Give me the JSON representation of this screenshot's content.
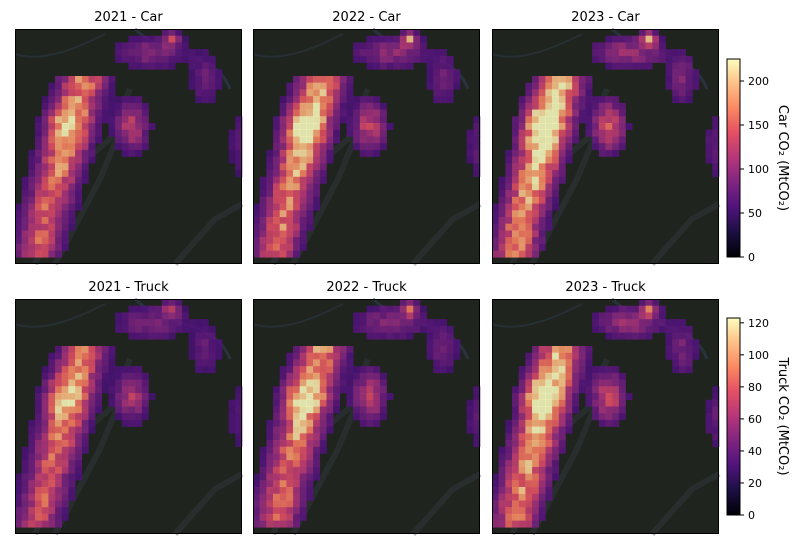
{
  "chart_data": [
    {
      "type": "heatmap",
      "title": "2021 - Car",
      "row": "car",
      "year": "2021",
      "colorbar_group": "car"
    },
    {
      "type": "heatmap",
      "title": "2022 - Car",
      "row": "car",
      "year": "2022",
      "colorbar_group": "car"
    },
    {
      "type": "heatmap",
      "title": "2023 - Car",
      "row": "car",
      "year": "2023",
      "colorbar_group": "car"
    },
    {
      "type": "heatmap",
      "title": "2021 - Truck",
      "row": "truck",
      "year": "2021",
      "colorbar_group": "truck"
    },
    {
      "type": "heatmap",
      "title": "2022 - Truck",
      "row": "truck",
      "year": "2022",
      "colorbar_group": "truck"
    },
    {
      "type": "heatmap",
      "title": "2023 - Truck",
      "row": "truck",
      "year": "2023",
      "colorbar_group": "truck"
    }
  ],
  "colorbars": {
    "car": {
      "label": "Car CO₂ (MtCO₂)",
      "ticks": [
        0,
        50,
        100,
        150,
        200
      ],
      "vmin": 0,
      "vmax": 225
    },
    "truck": {
      "label": "Truck CO₂ (MtCO₂)",
      "ticks": [
        0,
        20,
        40,
        60,
        80,
        100,
        120
      ],
      "vmax": 123,
      "vmin": 0
    }
  },
  "colormap": "magma",
  "basemap": "dark",
  "colors": {
    "basemap_background": "#1f241f",
    "basemap_features": "#3a4048",
    "basemap_rivers": "#2d3a4a"
  }
}
